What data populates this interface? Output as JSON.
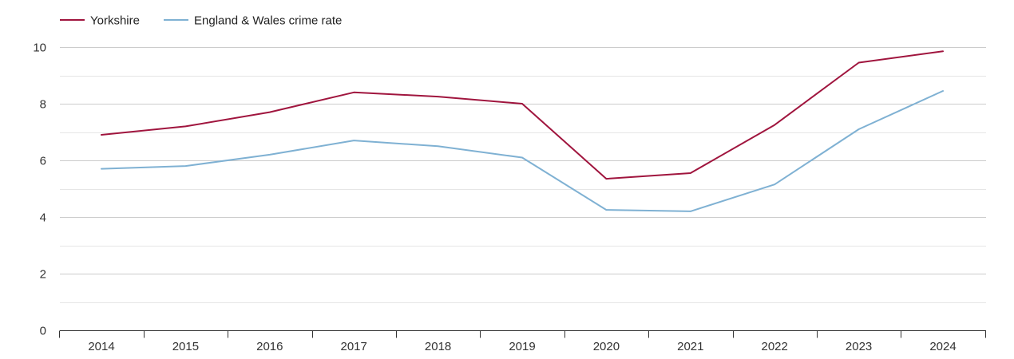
{
  "chart_data": {
    "type": "line",
    "title": "",
    "xlabel": "",
    "ylabel": "",
    "x": [
      2014,
      2015,
      2016,
      2017,
      2018,
      2019,
      2020,
      2021,
      2022,
      2023,
      2024
    ],
    "categories": [
      "2014",
      "2015",
      "2016",
      "2017",
      "2018",
      "2019",
      "2020",
      "2021",
      "2022",
      "2023",
      "2024"
    ],
    "ylim": [
      0,
      10
    ],
    "yticks": [
      0,
      2,
      4,
      6,
      8,
      10
    ],
    "yticks_minor": [
      1,
      3,
      5,
      7,
      9
    ],
    "ytick_labels": [
      "0",
      "2",
      "4",
      "6",
      "8",
      "10"
    ],
    "grid": true,
    "legend_position": "top-left",
    "series": [
      {
        "name": "Yorkshire",
        "color": "#a0153e",
        "values": [
          6.9,
          7.2,
          7.7,
          8.4,
          8.25,
          8.0,
          5.35,
          5.55,
          7.25,
          9.45,
          9.85
        ]
      },
      {
        "name": "England & Wales crime rate",
        "color": "#7fb1d3",
        "values": [
          5.7,
          5.8,
          6.2,
          6.7,
          6.5,
          6.1,
          4.25,
          4.2,
          5.15,
          7.1,
          8.45
        ]
      }
    ]
  }
}
